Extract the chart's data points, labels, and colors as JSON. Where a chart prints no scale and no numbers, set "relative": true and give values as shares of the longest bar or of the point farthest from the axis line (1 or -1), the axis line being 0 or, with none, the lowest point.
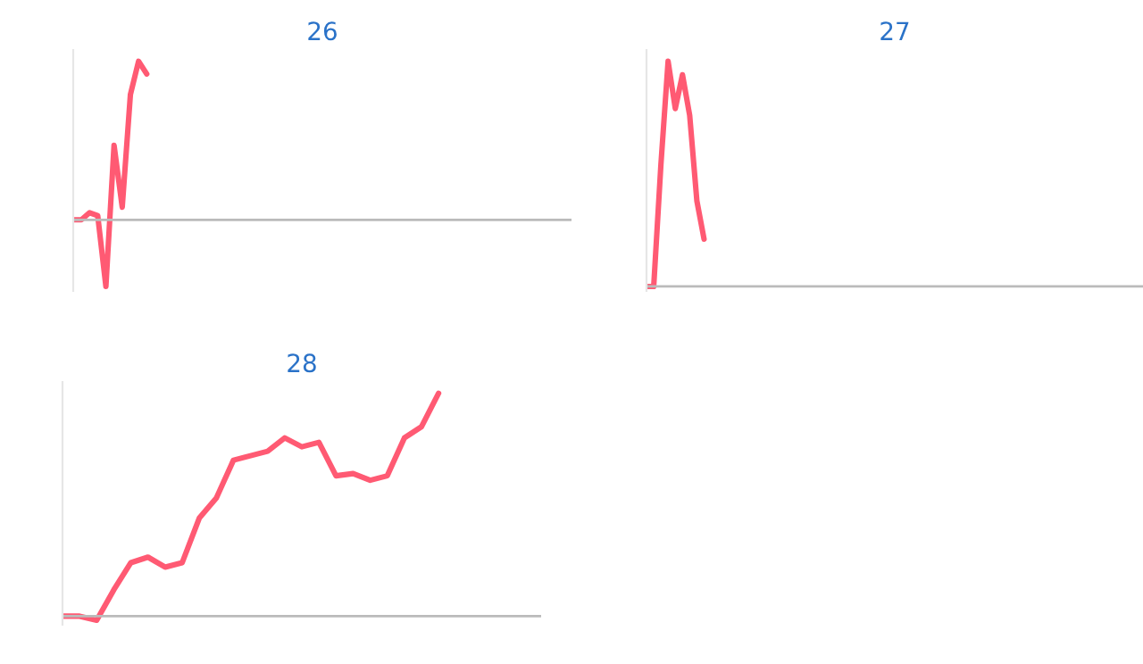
{
  "chart_data": [
    {
      "type": "line",
      "title": "26",
      "relative": true,
      "color": "#ff5a73",
      "categories": [
        null,
        null,
        null,
        null,
        null,
        null,
        null,
        null,
        null,
        null,
        null,
        null,
        null,
        null,
        null,
        null,
        null,
        null,
        null,
        null,
        null,
        null,
        null,
        null,
        null,
        null,
        null,
        null,
        null,
        null,
        null,
        null,
        null,
        null,
        null,
        null,
        null,
        null,
        null,
        null,
        null,
        null,
        null,
        null,
        null,
        null,
        null,
        null,
        null,
        null,
        null,
        null,
        null,
        null,
        null,
        null,
        null,
        null,
        null,
        null,
        null,
        null
      ],
      "values": [
        0,
        0,
        0.045,
        0.026,
        -0.42,
        0.47,
        0.08,
        0.79,
        1.0,
        0.92,
        null,
        null,
        null,
        null,
        null,
        null,
        null,
        null,
        null,
        null,
        null,
        null,
        null,
        null,
        null,
        null,
        null,
        null,
        null,
        null,
        null,
        null,
        null,
        null,
        null,
        null,
        null,
        null,
        null,
        null,
        null,
        null,
        null,
        null,
        null,
        null,
        null,
        null,
        null,
        null,
        null,
        null,
        null,
        null,
        null,
        null,
        null,
        null,
        null,
        null,
        null,
        null
      ]
    },
    {
      "type": "line",
      "title": "27",
      "relative": true,
      "color": "#ff5a73",
      "categories": [
        null,
        null,
        null,
        null,
        null,
        null,
        null,
        null,
        null,
        null,
        null,
        null,
        null,
        null,
        null,
        null,
        null,
        null,
        null,
        null,
        null,
        null,
        null,
        null,
        null,
        null,
        null,
        null,
        null,
        null,
        null,
        null,
        null,
        null,
        null,
        null,
        null,
        null,
        null,
        null,
        null,
        null,
        null,
        null,
        null,
        null,
        null,
        null,
        null,
        null,
        null,
        null,
        null,
        null,
        null,
        null,
        null,
        null,
        null,
        null,
        null,
        null,
        null,
        null,
        null,
        null,
        null,
        null,
        null,
        null
      ],
      "values": [
        0,
        0,
        0.54,
        1.0,
        0.79,
        0.94,
        0.76,
        0.38,
        0.21,
        null,
        null,
        null,
        null,
        null,
        null,
        null,
        null,
        null,
        null,
        null,
        null,
        null,
        null,
        null,
        null,
        null,
        null,
        null,
        null,
        null,
        null,
        null,
        null,
        null,
        null,
        null,
        null,
        null,
        null,
        null,
        null,
        null,
        null,
        null,
        null,
        null,
        null,
        null,
        null,
        null,
        null,
        null,
        null,
        null,
        null,
        null,
        null,
        null,
        null,
        null,
        null,
        null,
        null,
        null,
        null,
        null,
        null,
        null,
        null,
        null
      ]
    },
    {
      "type": "line",
      "title": "28",
      "relative": true,
      "color": "#ff5a73",
      "categories": [
        null,
        null,
        null,
        null,
        null,
        null,
        null,
        null,
        null,
        null,
        null,
        null,
        null,
        null,
        null,
        null,
        null,
        null,
        null,
        null,
        null,
        null,
        null,
        null,
        null,
        null,
        null,
        null,
        null
      ],
      "values": [
        0,
        0,
        -0.018,
        0.118,
        0.24,
        0.265,
        0.22,
        0.24,
        0.44,
        0.53,
        0.7,
        0.72,
        0.74,
        0.8,
        0.76,
        0.78,
        0.63,
        0.64,
        0.61,
        0.63,
        0.8,
        0.85,
        1.0,
        null,
        null,
        null,
        null,
        null,
        null
      ]
    }
  ]
}
